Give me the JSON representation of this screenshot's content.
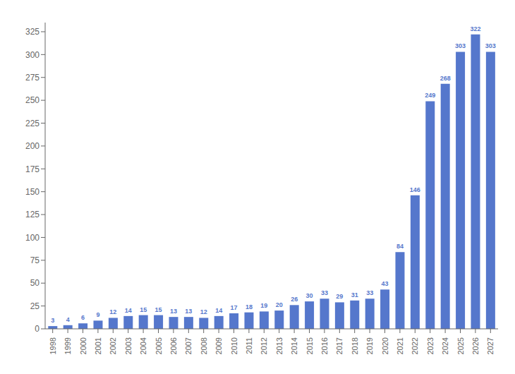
{
  "chart_data": {
    "type": "bar",
    "categories": [
      "1998",
      "1999",
      "2000",
      "2001",
      "2002",
      "2003",
      "2004",
      "2005",
      "2006",
      "2007",
      "2008",
      "2009",
      "2010",
      "2011",
      "2012",
      "2013",
      "2014",
      "2015",
      "2016",
      "2017",
      "2018",
      "2019",
      "2020",
      "2021",
      "2022",
      "2023",
      "2024",
      "2025",
      "2026",
      "2027"
    ],
    "values": [
      3,
      4,
      6,
      9,
      12,
      14,
      15,
      15,
      13,
      13,
      12,
      14,
      17,
      18,
      19,
      20,
      26,
      30,
      33,
      29,
      31,
      33,
      43,
      84,
      146,
      249,
      268,
      303,
      322,
      303
    ],
    "color": "#5577cc",
    "ylim": [
      0,
      335
    ],
    "yticks": [
      0,
      25,
      50,
      75,
      100,
      125,
      150,
      175,
      200,
      225,
      250,
      275,
      300,
      325
    ],
    "data_labels": true,
    "grid": false
  }
}
